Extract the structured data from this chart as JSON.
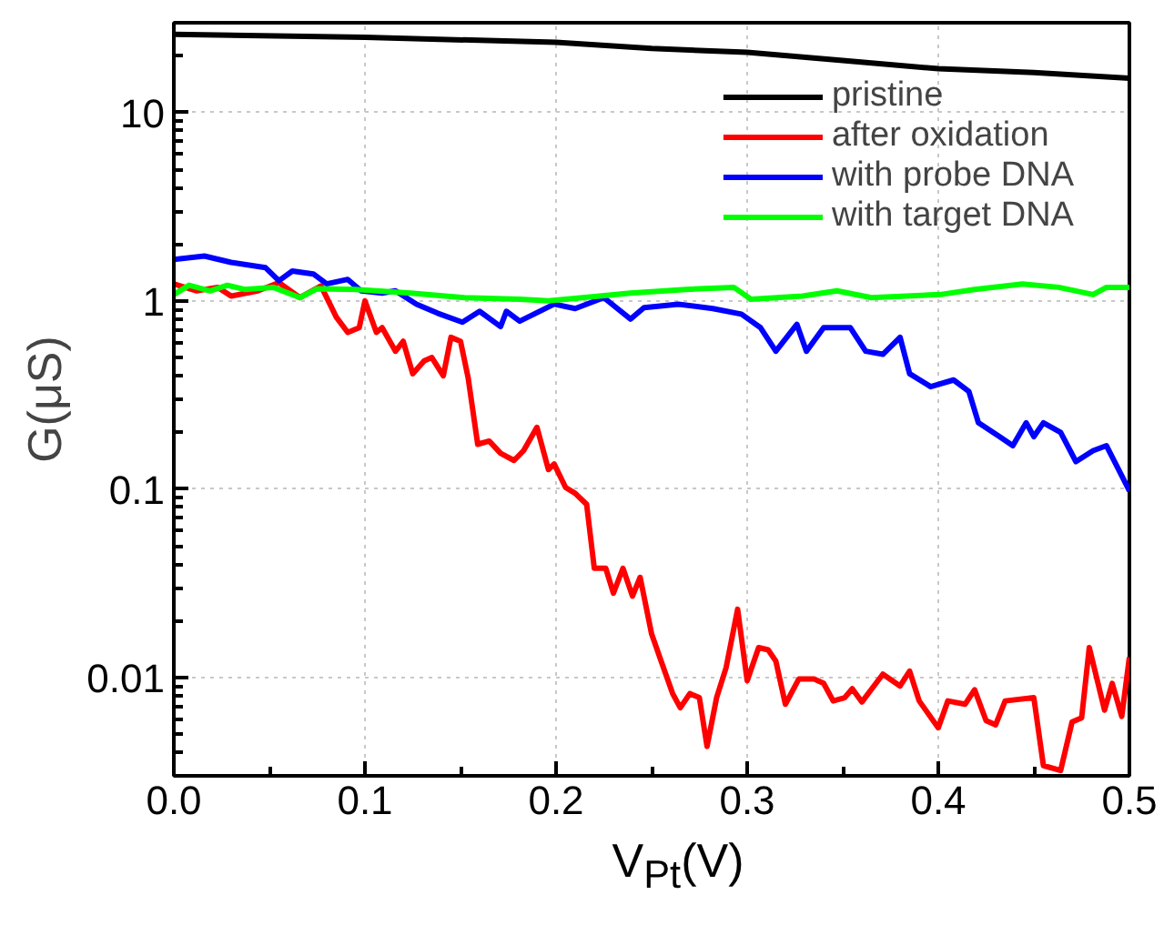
{
  "chart_data": {
    "type": "line",
    "xlabel": "V$_{Pt}$(V)",
    "ylabel": "G(μS)",
    "log": "y",
    "xlim": [
      0,
      0.5
    ],
    "ylim": [
      0.003,
      30
    ],
    "xticks": [
      {
        "value": 0,
        "label": "0.0"
      },
      0.1,
      0.2,
      0.3,
      0.4,
      0.5
    ],
    "yticks": [
      0.01,
      0.1,
      1,
      10
    ],
    "grid": true,
    "legend": "top right",
    "line_style": "solid",
    "marker": "none",
    "series": [
      {
        "name": "pristine",
        "color": "#000000",
        "x": [
          0,
          0.1,
          0.2,
          0.25,
          0.3,
          0.35,
          0.4,
          0.45,
          0.5
        ],
        "values": [
          26,
          25.1,
          23.6,
          21.9,
          20.9,
          18.9,
          17.1,
          16.3,
          15.2
        ]
      },
      {
        "name": "after oxidation",
        "color": "#ff0000",
        "x": [
          0,
          0.012,
          0.023,
          0.03,
          0.044,
          0.055,
          0.066,
          0.077,
          0.085,
          0.091,
          0.097,
          0.1,
          0.106,
          0.109,
          0.116,
          0.12,
          0.125,
          0.131,
          0.135,
          0.141,
          0.145,
          0.15,
          0.154,
          0.159,
          0.165,
          0.171,
          0.178,
          0.183,
          0.19,
          0.196,
          0.199,
          0.205,
          0.21,
          0.216,
          0.22,
          0.226,
          0.23,
          0.235,
          0.24,
          0.244,
          0.25,
          0.255,
          0.261,
          0.265,
          0.27,
          0.275,
          0.279,
          0.284,
          0.289,
          0.295,
          0.3,
          0.306,
          0.311,
          0.315,
          0.32,
          0.327,
          0.335,
          0.34,
          0.345,
          0.351,
          0.355,
          0.36,
          0.371,
          0.38,
          0.385,
          0.39,
          0.4,
          0.405,
          0.414,
          0.419,
          0.425,
          0.43,
          0.435,
          0.45,
          0.455,
          0.464,
          0.47,
          0.475,
          0.479,
          0.487,
          0.491,
          0.496,
          0.5
        ],
        "values": [
          1.23,
          1.13,
          1.18,
          1.06,
          1.13,
          1.25,
          1.04,
          1.2,
          0.82,
          0.68,
          0.72,
          1.0,
          0.68,
          0.72,
          0.54,
          0.61,
          0.41,
          0.48,
          0.5,
          0.4,
          0.64,
          0.61,
          0.39,
          0.173,
          0.18,
          0.155,
          0.142,
          0.16,
          0.213,
          0.127,
          0.136,
          0.102,
          0.095,
          0.083,
          0.038,
          0.038,
          0.028,
          0.038,
          0.027,
          0.034,
          0.017,
          0.0122,
          0.0082,
          0.0069,
          0.0082,
          0.0078,
          0.0043,
          0.0078,
          0.0113,
          0.023,
          0.0096,
          0.0144,
          0.014,
          0.0122,
          0.0072,
          0.0098,
          0.0098,
          0.0093,
          0.0075,
          0.0078,
          0.0087,
          0.0074,
          0.0104,
          0.009,
          0.0108,
          0.0075,
          0.0054,
          0.0075,
          0.0072,
          0.0086,
          0.0059,
          0.0056,
          0.0075,
          0.0078,
          0.0034,
          0.0032,
          0.0058,
          0.0061,
          0.0144,
          0.0067,
          0.0093,
          0.0062,
          0.0128
        ]
      },
      {
        "name": "with probe DNA",
        "color": "#0000ff",
        "x": [
          0,
          0.016,
          0.03,
          0.048,
          0.055,
          0.062,
          0.073,
          0.08,
          0.091,
          0.098,
          0.109,
          0.116,
          0.127,
          0.138,
          0.151,
          0.16,
          0.171,
          0.174,
          0.181,
          0.199,
          0.21,
          0.225,
          0.239,
          0.246,
          0.264,
          0.282,
          0.297,
          0.307,
          0.315,
          0.326,
          0.331,
          0.34,
          0.354,
          0.362,
          0.371,
          0.38,
          0.385,
          0.396,
          0.408,
          0.416,
          0.421,
          0.432,
          0.439,
          0.446,
          0.45,
          0.455,
          0.464,
          0.472,
          0.481,
          0.488,
          0.5
        ],
        "values": [
          1.66,
          1.73,
          1.6,
          1.5,
          1.28,
          1.44,
          1.39,
          1.23,
          1.3,
          1.13,
          1.1,
          1.13,
          0.96,
          0.86,
          0.77,
          0.88,
          0.73,
          0.88,
          0.78,
          0.96,
          0.91,
          1.04,
          0.8,
          0.92,
          0.96,
          0.91,
          0.85,
          0.72,
          0.54,
          0.75,
          0.54,
          0.72,
          0.72,
          0.54,
          0.52,
          0.64,
          0.41,
          0.35,
          0.38,
          0.33,
          0.225,
          0.19,
          0.17,
          0.225,
          0.19,
          0.225,
          0.2,
          0.14,
          0.16,
          0.17,
          0.098
        ]
      },
      {
        "name": "with target DNA",
        "color": "#00ff00",
        "x": [
          0,
          0.008,
          0.019,
          0.028,
          0.037,
          0.052,
          0.066,
          0.075,
          0.095,
          0.124,
          0.152,
          0.181,
          0.196,
          0.214,
          0.239,
          0.268,
          0.293,
          0.302,
          0.329,
          0.347,
          0.365,
          0.401,
          0.419,
          0.444,
          0.463,
          0.481,
          0.488,
          0.5
        ],
        "values": [
          1.08,
          1.21,
          1.13,
          1.21,
          1.15,
          1.18,
          1.04,
          1.16,
          1.15,
          1.1,
          1.04,
          1.02,
          1.0,
          1.04,
          1.1,
          1.15,
          1.18,
          1.02,
          1.06,
          1.13,
          1.04,
          1.08,
          1.15,
          1.23,
          1.18,
          1.08,
          1.18,
          1.18
        ]
      }
    ]
  }
}
